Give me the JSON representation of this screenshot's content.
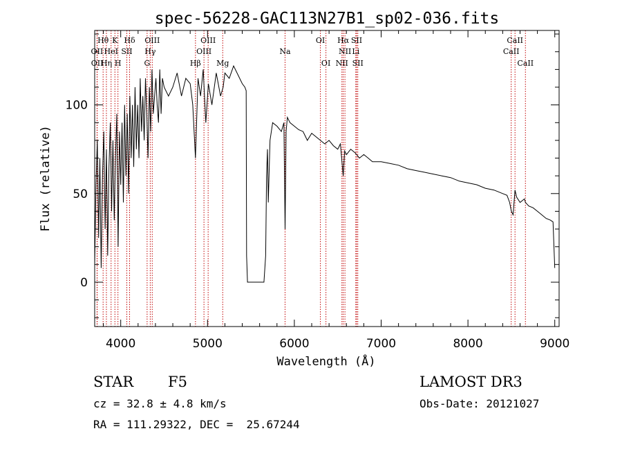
{
  "chart_data": {
    "type": "line",
    "title": "spec-56228-GAC113N27B1_sp02-036.fits",
    "xlabel": "Wavelength (Å)",
    "ylabel": "Flux (relative)",
    "xlim": [
      3700,
      9050
    ],
    "ylim": [
      -25,
      142
    ],
    "xticks": [
      4000,
      5000,
      6000,
      7000,
      8000,
      9000
    ],
    "xtick_labels": [
      "4000",
      "5000",
      "6000",
      "7000",
      "8000",
      "9000"
    ],
    "yticks": [
      0,
      50,
      100
    ],
    "ytick_labels": [
      "0",
      "50",
      "100"
    ],
    "series": [
      {
        "name": "flux",
        "x": [
          3700,
          3715,
          3730,
          3745,
          3760,
          3775,
          3790,
          3805,
          3820,
          3835,
          3850,
          3865,
          3880,
          3895,
          3910,
          3925,
          3940,
          3955,
          3970,
          3985,
          4000,
          4015,
          4030,
          4045,
          4060,
          4075,
          4090,
          4105,
          4120,
          4135,
          4150,
          4165,
          4180,
          4195,
          4210,
          4225,
          4240,
          4255,
          4270,
          4285,
          4300,
          4315,
          4330,
          4345,
          4360,
          4375,
          4390,
          4405,
          4420,
          4435,
          4450,
          4465,
          4480,
          4500,
          4550,
          4600,
          4650,
          4700,
          4750,
          4800,
          4830,
          4861,
          4890,
          4920,
          4950,
          4980,
          5010,
          5050,
          5100,
          5150,
          5180,
          5200,
          5250,
          5300,
          5350,
          5400,
          5430,
          5445,
          5450,
          5460,
          5480,
          5500,
          5550,
          5600,
          5650,
          5670,
          5680,
          5690,
          5700,
          5720,
          5750,
          5800,
          5850,
          5880,
          5893,
          5905,
          5920,
          5950,
          6000,
          6050,
          6100,
          6150,
          6200,
          6250,
          6300,
          6350,
          6400,
          6450,
          6500,
          6530,
          6563,
          6580,
          6600,
          6650,
          6700,
          6750,
          6800,
          6850,
          6900,
          6950,
          7000,
          7100,
          7200,
          7300,
          7400,
          7500,
          7600,
          7700,
          7800,
          7900,
          8000,
          8100,
          8200,
          8300,
          8400,
          8450,
          8480,
          8500,
          8520,
          8542,
          8560,
          8600,
          8650,
          8662,
          8700,
          8750,
          8800,
          8850,
          8900,
          8950,
          8980,
          9000
        ],
        "y": [
          10,
          55,
          80,
          25,
          70,
          8,
          60,
          85,
          30,
          75,
          15,
          65,
          90,
          40,
          80,
          35,
          70,
          95,
          20,
          85,
          55,
          90,
          45,
          100,
          60,
          95,
          50,
          105,
          70,
          100,
          65,
          110,
          75,
          100,
          70,
          115,
          85,
          105,
          80,
          115,
          95,
          70,
          110,
          85,
          120,
          95,
          105,
          115,
          100,
          90,
          120,
          95,
          115,
          110,
          105,
          110,
          118,
          105,
          115,
          112,
          100,
          70,
          115,
          105,
          120,
          90,
          112,
          100,
          118,
          105,
          110,
          118,
          115,
          122,
          117,
          112,
          110,
          108,
          15,
          0,
          0,
          0,
          0,
          0,
          0,
          15,
          60,
          75,
          45,
          80,
          90,
          88,
          85,
          90,
          30,
          85,
          93,
          90,
          88,
          86,
          85,
          80,
          84,
          82,
          80,
          78,
          80,
          77,
          75,
          78,
          60,
          74,
          72,
          75,
          73,
          70,
          72,
          70,
          68,
          68,
          68,
          67,
          66,
          64,
          63,
          62,
          61,
          60,
          59,
          57,
          56,
          55,
          53,
          52,
          50,
          49,
          45,
          40,
          38,
          52,
          48,
          45,
          47,
          45,
          43,
          42,
          40,
          38,
          36,
          35,
          34,
          8
        ]
      }
    ],
    "annotations": [
      {
        "label": "Hθ",
        "x": 3797,
        "row": 1
      },
      {
        "label": "K",
        "x": 3933,
        "row": 1
      },
      {
        "label": "Hδ",
        "x": 4102,
        "row": 1
      },
      {
        "label": "OIII",
        "x": 4363,
        "row": 1
      },
      {
        "label": "OIII",
        "x": 5007,
        "row": 1
      },
      {
        "label": "OI",
        "x": 6300,
        "row": 1
      },
      {
        "label": "Hα",
        "x": 6563,
        "row": 1
      },
      {
        "label": "SII",
        "x": 6717,
        "row": 1
      },
      {
        "label": "CaII",
        "x": 8542,
        "row": 1
      },
      {
        "label": "OII",
        "x": 3727,
        "row": 2
      },
      {
        "label": "HeI",
        "x": 3889,
        "row": 2
      },
      {
        "label": "SII",
        "x": 4070,
        "row": 2
      },
      {
        "label": "Hγ",
        "x": 4340,
        "row": 2
      },
      {
        "label": "OIII",
        "x": 4959,
        "row": 2
      },
      {
        "label": "Na",
        "x": 5893,
        "row": 2
      },
      {
        "label": "NII",
        "x": 6583,
        "row": 2
      },
      {
        "label": "Li",
        "x": 6708,
        "row": 2
      },
      {
        "label": "CaII",
        "x": 8498,
        "row": 2
      },
      {
        "label": "OII",
        "x": 3729,
        "row": 3
      },
      {
        "label": "Hη",
        "x": 3835,
        "row": 3
      },
      {
        "label": "H",
        "x": 3968,
        "row": 3
      },
      {
        "label": "G",
        "x": 4304,
        "row": 3
      },
      {
        "label": "Hβ",
        "x": 4861,
        "row": 3
      },
      {
        "label": "Mg",
        "x": 5175,
        "row": 3
      },
      {
        "label": "OI",
        "x": 6364,
        "row": 3
      },
      {
        "label": "NII",
        "x": 6548,
        "row": 3
      },
      {
        "label": "SII",
        "x": 6731,
        "row": 3
      },
      {
        "label": "CaII",
        "x": 8662,
        "row": 3
      }
    ]
  },
  "info": {
    "object_class": "STAR",
    "subclass": "F5",
    "survey": "LAMOST DR3",
    "redshift": "cz = 32.8 ± 4.8 km/s",
    "obs_date": "Obs-Date: 20121027",
    "coords": "RA = 111.29322, DEC =  25.67244"
  }
}
